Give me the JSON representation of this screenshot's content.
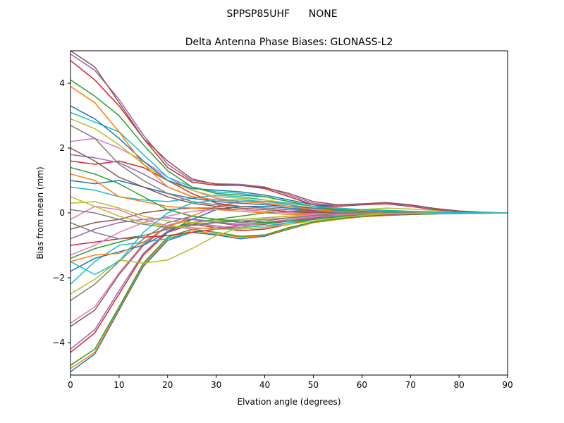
{
  "figure": {
    "suptitle": "SPPSP85UHF      NONE"
  },
  "chart_data": {
    "type": "line",
    "title": "Delta Antenna Phase Biases: GLONASS-L2",
    "xlabel": "Elvation angle (degrees)",
    "ylabel": "Bias from mean (mm)",
    "xlim": [
      0,
      90
    ],
    "ylim": [
      -5,
      5
    ],
    "xticks": [
      0,
      10,
      20,
      30,
      40,
      50,
      60,
      70,
      80,
      90
    ],
    "xtick_labels": [
      "0",
      "10",
      "20",
      "30",
      "40",
      "50",
      "60",
      "70",
      "80",
      "90"
    ],
    "yticks": [
      -4,
      -2,
      0,
      2,
      4
    ],
    "ytick_labels": [
      "−4",
      "−2",
      "0",
      "2",
      "4"
    ],
    "grid": false,
    "legend": "none",
    "colors": [
      "#1f77b4",
      "#ff7f0e",
      "#2ca02c",
      "#d62728",
      "#9467bd",
      "#8c564b",
      "#e377c2",
      "#7f7f7f",
      "#bcbd22",
      "#17becf"
    ],
    "x": [
      0,
      5,
      10,
      15,
      20,
      25,
      30,
      35,
      40,
      45,
      50,
      55,
      60,
      65,
      70,
      75,
      80,
      85,
      90
    ],
    "series": [
      {
        "values": [
          -4.9,
          -4.35,
          -3.0,
          -1.65,
          -0.85,
          -0.6,
          -0.68,
          -0.8,
          -0.72,
          -0.5,
          -0.3,
          -0.2,
          -0.12,
          -0.08,
          -0.05,
          -0.03,
          -0.02,
          -0.01,
          0
        ]
      },
      {
        "values": [
          -4.8,
          -4.3,
          -2.95,
          -1.6,
          -0.8,
          -0.55,
          -0.65,
          -0.75,
          -0.7,
          -0.48,
          -0.3,
          -0.2,
          -0.12,
          -0.08,
          -0.05,
          -0.03,
          -0.02,
          -0.01,
          0
        ]
      },
      {
        "values": [
          -4.7,
          -4.2,
          -2.9,
          -1.55,
          -0.75,
          -0.5,
          -0.6,
          -0.72,
          -0.68,
          -0.45,
          -0.28,
          -0.18,
          -0.1,
          -0.07,
          -0.05,
          -0.03,
          -0.02,
          -0.01,
          0
        ]
      },
      {
        "values": [
          -4.3,
          -3.7,
          -2.5,
          -1.3,
          -0.6,
          -0.35,
          -0.45,
          -0.55,
          -0.5,
          -0.35,
          -0.2,
          -0.12,
          -0.08,
          -0.05,
          -0.04,
          -0.02,
          -0.01,
          0,
          0
        ]
      },
      {
        "values": [
          -4.2,
          -3.6,
          -2.4,
          -1.25,
          -0.55,
          -0.3,
          -0.4,
          -0.5,
          -0.45,
          -0.3,
          -0.18,
          -0.1,
          -0.06,
          -0.04,
          -0.03,
          -0.02,
          -0.01,
          0,
          0
        ]
      },
      {
        "values": [
          -3.5,
          -3.0,
          -1.9,
          -1.0,
          -0.4,
          -0.2,
          -0.3,
          -0.4,
          -0.35,
          -0.25,
          -0.15,
          -0.08,
          -0.05,
          -0.03,
          -0.02,
          -0.01,
          0,
          0,
          0
        ]
      },
      {
        "values": [
          -3.4,
          -2.9,
          -1.85,
          -0.95,
          -0.38,
          -0.18,
          -0.28,
          -0.38,
          -0.33,
          -0.22,
          -0.13,
          -0.07,
          -0.04,
          -0.03,
          -0.02,
          -0.01,
          0,
          0,
          0
        ]
      },
      {
        "values": [
          -2.7,
          -2.2,
          -1.5,
          -0.8,
          -0.3,
          -0.1,
          -0.2,
          -0.3,
          -0.25,
          -0.15,
          -0.1,
          -0.05,
          0,
          0.05,
          0.04,
          0.02,
          0.01,
          0,
          0
        ]
      },
      {
        "values": [
          -2.5,
          -2.05,
          -1.45,
          -1.55,
          -1.45,
          -1.1,
          -0.7,
          -0.45,
          -0.3,
          -0.2,
          -0.1,
          0,
          0.1,
          0.15,
          0.12,
          0.08,
          0.04,
          0.01,
          0
        ]
      },
      {
        "values": [
          -2.2,
          -1.5,
          -1.0,
          -0.9,
          -0.8,
          -0.6,
          -0.5,
          -0.45,
          -0.4,
          -0.3,
          -0.2,
          -0.1,
          0,
          0.05,
          0.04,
          0.02,
          0.01,
          0,
          0
        ]
      },
      {
        "values": [
          -1.8,
          -1.4,
          -1.2,
          -1.0,
          -0.6,
          -0.2,
          0.1,
          0.2,
          0.2,
          0.15,
          0.1,
          0.08,
          0.05,
          0.03,
          0.02,
          0.01,
          0,
          0,
          0
        ]
      },
      {
        "values": [
          -1.5,
          -1.3,
          -1.25,
          -0.9,
          -0.45,
          -0.1,
          0.2,
          0.35,
          0.35,
          0.25,
          0.15,
          0.1,
          0.06,
          0.04,
          0.03,
          0.02,
          0.01,
          0,
          0
        ]
      },
      {
        "values": [
          -1.4,
          -1.1,
          -0.9,
          -0.7,
          -0.5,
          -0.3,
          -0.2,
          -0.1,
          0,
          0.05,
          0.05,
          0.05,
          0.05,
          0.03,
          0.02,
          0.01,
          0,
          0,
          0
        ]
      },
      {
        "values": [
          -1.0,
          -0.9,
          -0.8,
          -0.75,
          -0.7,
          -0.6,
          -0.5,
          -0.4,
          -0.3,
          -0.2,
          -0.1,
          0,
          0.05,
          0.05,
          0.03,
          0.02,
          0.01,
          0,
          0
        ]
      },
      {
        "values": [
          -0.8,
          -0.5,
          -0.3,
          -0.2,
          -0.15,
          -0.2,
          -0.3,
          -0.35,
          -0.3,
          -0.2,
          -0.1,
          -0.05,
          0,
          0.02,
          0.02,
          0.01,
          0,
          0,
          0
        ]
      },
      {
        "values": [
          -0.5,
          -0.3,
          -0.2,
          0,
          0.1,
          0.15,
          0.15,
          0.1,
          0.05,
          0,
          0,
          0.02,
          0.03,
          0.03,
          0.02,
          0.01,
          0,
          0,
          0
        ]
      },
      {
        "values": [
          -0.2,
          0.2,
          0.1,
          -0.2,
          -0.4,
          -0.5,
          -0.45,
          -0.4,
          -0.3,
          -0.2,
          -0.1,
          0,
          0.05,
          0.05,
          0.03,
          0.02,
          0.01,
          0,
          0
        ]
      },
      {
        "values": [
          0.1,
          0.0,
          -0.2,
          -0.35,
          -0.45,
          -0.4,
          -0.3,
          -0.2,
          -0.15,
          -0.1,
          -0.05,
          0,
          0.02,
          0.02,
          0.01,
          0,
          0,
          0,
          0
        ]
      },
      {
        "values": [
          0.3,
          0.35,
          0.15,
          -0.1,
          -0.25,
          -0.3,
          -0.25,
          -0.2,
          -0.15,
          -0.1,
          -0.05,
          0,
          0.03,
          0.03,
          0.02,
          0.01,
          0,
          0,
          0
        ]
      },
      {
        "values": [
          0.8,
          0.7,
          0.5,
          0.4,
          0.35,
          0.45,
          0.55,
          0.5,
          0.4,
          0.25,
          0.1,
          0.05,
          0.03,
          0.02,
          0.01,
          0,
          0,
          0,
          0
        ]
      },
      {
        "values": [
          1.0,
          0.9,
          1.0,
          0.8,
          0.6,
          0.45,
          0.35,
          0.3,
          0.25,
          0.2,
          0.15,
          0.12,
          0.1,
          0.08,
          0.05,
          0.03,
          0.01,
          0,
          0
        ]
      },
      {
        "values": [
          1.2,
          1.0,
          0.5,
          0.35,
          0.2,
          0.15,
          0.1,
          0.05,
          0,
          -0.05,
          -0.05,
          -0.05,
          -0.03,
          -0.02,
          -0.01,
          0,
          0,
          0,
          0
        ]
      },
      {
        "values": [
          1.4,
          1.2,
          0.9,
          0.5,
          0.1,
          -0.1,
          -0.2,
          -0.25,
          -0.3,
          -0.25,
          -0.2,
          -0.12,
          -0.06,
          -0.03,
          -0.02,
          -0.01,
          0,
          0,
          0
        ]
      },
      {
        "values": [
          1.6,
          1.5,
          1.6,
          1.4,
          1.0,
          0.6,
          0.3,
          0.2,
          0.15,
          0.1,
          0.08,
          0.05,
          0.03,
          0.02,
          0.01,
          0,
          0,
          0,
          0
        ]
      },
      {
        "values": [
          1.8,
          1.7,
          1.55,
          1.2,
          0.8,
          0.5,
          0.4,
          0.35,
          0.3,
          0.2,
          0.1,
          0.05,
          0.02,
          0.01,
          0,
          0,
          0,
          0,
          0
        ]
      },
      {
        "values": [
          2.0,
          1.6,
          1.1,
          0.8,
          0.5,
          0.3,
          0.2,
          0.15,
          0.1,
          0.05,
          0.02,
          0,
          0,
          0,
          0,
          0,
          0,
          0,
          0
        ]
      },
      {
        "values": [
          2.2,
          2.3,
          2.0,
          1.6,
          1.1,
          0.7,
          0.45,
          0.35,
          0.3,
          0.2,
          0.1,
          0.05,
          0.02,
          0.01,
          0,
          0,
          0,
          0,
          0
        ]
      },
      {
        "values": [
          2.7,
          2.3,
          1.5,
          1.0,
          0.6,
          0.35,
          0.25,
          0.2,
          0.15,
          0.1,
          0.05,
          0.02,
          0,
          0,
          0,
          0,
          0,
          0,
          0
        ]
      },
      {
        "values": [
          2.9,
          2.6,
          2.1,
          1.5,
          1.0,
          0.7,
          0.5,
          0.45,
          0.4,
          0.3,
          0.2,
          0.12,
          0.06,
          0.03,
          0.02,
          0.01,
          0,
          0,
          0
        ]
      },
      {
        "values": [
          3.1,
          2.8,
          2.5,
          1.8,
          1.1,
          0.8,
          0.65,
          0.6,
          0.5,
          0.35,
          0.2,
          0.1,
          0.05,
          0.02,
          0.01,
          0,
          0,
          0,
          0
        ]
      },
      {
        "values": [
          3.3,
          2.9,
          2.3,
          1.6,
          1.0,
          0.75,
          0.7,
          0.65,
          0.55,
          0.4,
          0.25,
          0.15,
          0.1,
          0.06,
          0.03,
          0.01,
          0,
          0,
          0
        ]
      },
      {
        "values": [
          3.9,
          3.4,
          2.5,
          1.5,
          0.8,
          0.5,
          0.4,
          0.35,
          0.3,
          0.2,
          0.1,
          0.05,
          0.02,
          0.01,
          0,
          0,
          0,
          0,
          0
        ]
      },
      {
        "values": [
          4.1,
          3.6,
          3.0,
          2.1,
          1.3,
          0.8,
          0.6,
          0.55,
          0.5,
          0.35,
          0.2,
          0.1,
          0.05,
          0.02,
          0.01,
          0,
          0,
          0,
          0
        ]
      },
      {
        "values": [
          4.7,
          4.1,
          3.3,
          2.3,
          1.4,
          0.95,
          0.85,
          0.85,
          0.75,
          0.5,
          0.25,
          0.2,
          0.25,
          0.28,
          0.2,
          0.1,
          0.04,
          0.01,
          0
        ]
      },
      {
        "values": [
          4.9,
          4.4,
          3.5,
          2.4,
          1.5,
          1.0,
          0.9,
          0.88,
          0.8,
          0.55,
          0.3,
          0.22,
          0.27,
          0.3,
          0.22,
          0.12,
          0.05,
          0.01,
          0
        ]
      },
      {
        "values": [
          5.0,
          4.5,
          3.4,
          2.3,
          1.6,
          1.05,
          0.88,
          0.85,
          0.78,
          0.6,
          0.35,
          0.25,
          0.28,
          0.32,
          0.25,
          0.14,
          0.06,
          0.02,
          0
        ]
      },
      {
        "values": [
          -1.3,
          -1.0,
          -0.6,
          -0.3,
          -0.1,
          0.05,
          0.1,
          0.1,
          0.05,
          0,
          -0.05,
          -0.05,
          -0.03,
          -0.02,
          -0.01,
          0,
          0,
          0,
          0
        ]
      },
      {
        "values": [
          -0.3,
          -0.6,
          -0.8,
          -0.7,
          -0.5,
          -0.35,
          -0.3,
          -0.25,
          -0.2,
          -0.15,
          -0.08,
          -0.02,
          0.02,
          0.03,
          0.02,
          0.01,
          0,
          0,
          0
        ]
      },
      {
        "values": [
          0.5,
          0.2,
          -0.1,
          -0.3,
          -0.4,
          -0.45,
          -0.5,
          -0.5,
          -0.45,
          -0.35,
          -0.25,
          -0.15,
          -0.08,
          -0.03,
          -0.01,
          0,
          0,
          0,
          0
        ]
      },
      {
        "values": [
          -1.5,
          -1.9,
          -1.5,
          -0.6,
          0.0,
          0.3,
          0.4,
          0.4,
          0.35,
          0.3,
          0.2,
          0.15,
          0.1,
          0.07,
          0.04,
          0.02,
          0.01,
          0,
          0
        ]
      }
    ]
  }
}
